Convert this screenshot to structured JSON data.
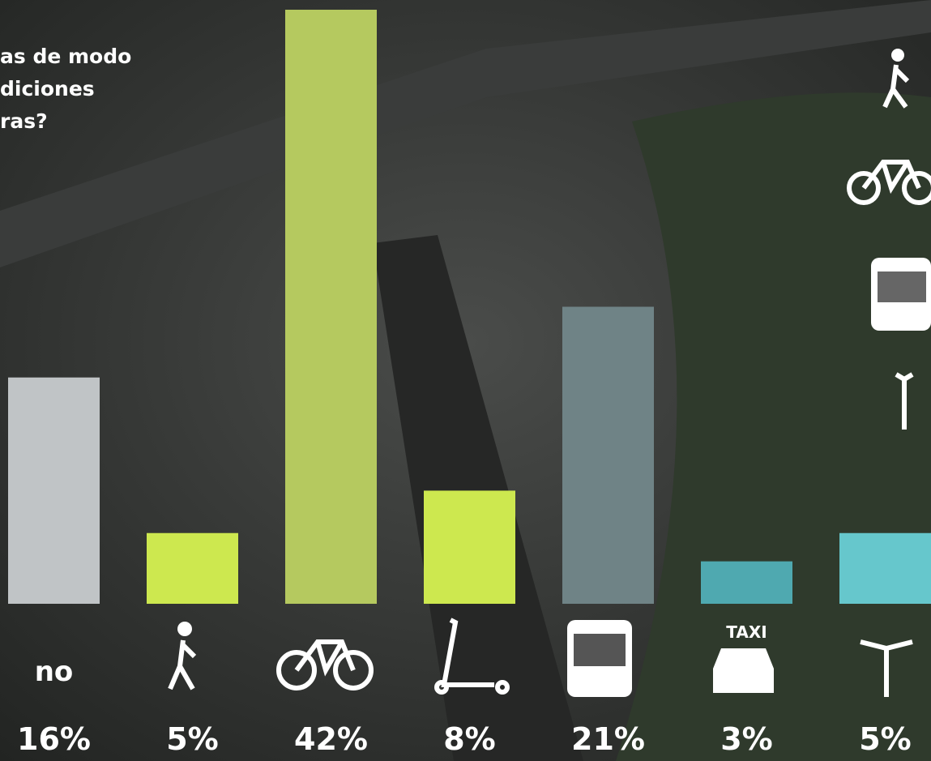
{
  "chart_data": {
    "type": "bar",
    "title_lines": [
      "as de modo",
      "diciones",
      "ras?"
    ],
    "categories": [
      "no",
      null,
      null,
      null,
      null,
      "TAXI",
      null
    ],
    "values": [
      16,
      5,
      42,
      8,
      21,
      3,
      5
    ],
    "value_labels": [
      "16%",
      "5%",
      "42%",
      "8%",
      "21%",
      "3%",
      "5%"
    ],
    "colors": [
      "#c0c4c6",
      "#cde84f",
      "#b5c95f",
      "#cde84f",
      "#6f8386",
      "#4fa9b0",
      "#66c7cc"
    ]
  }
}
